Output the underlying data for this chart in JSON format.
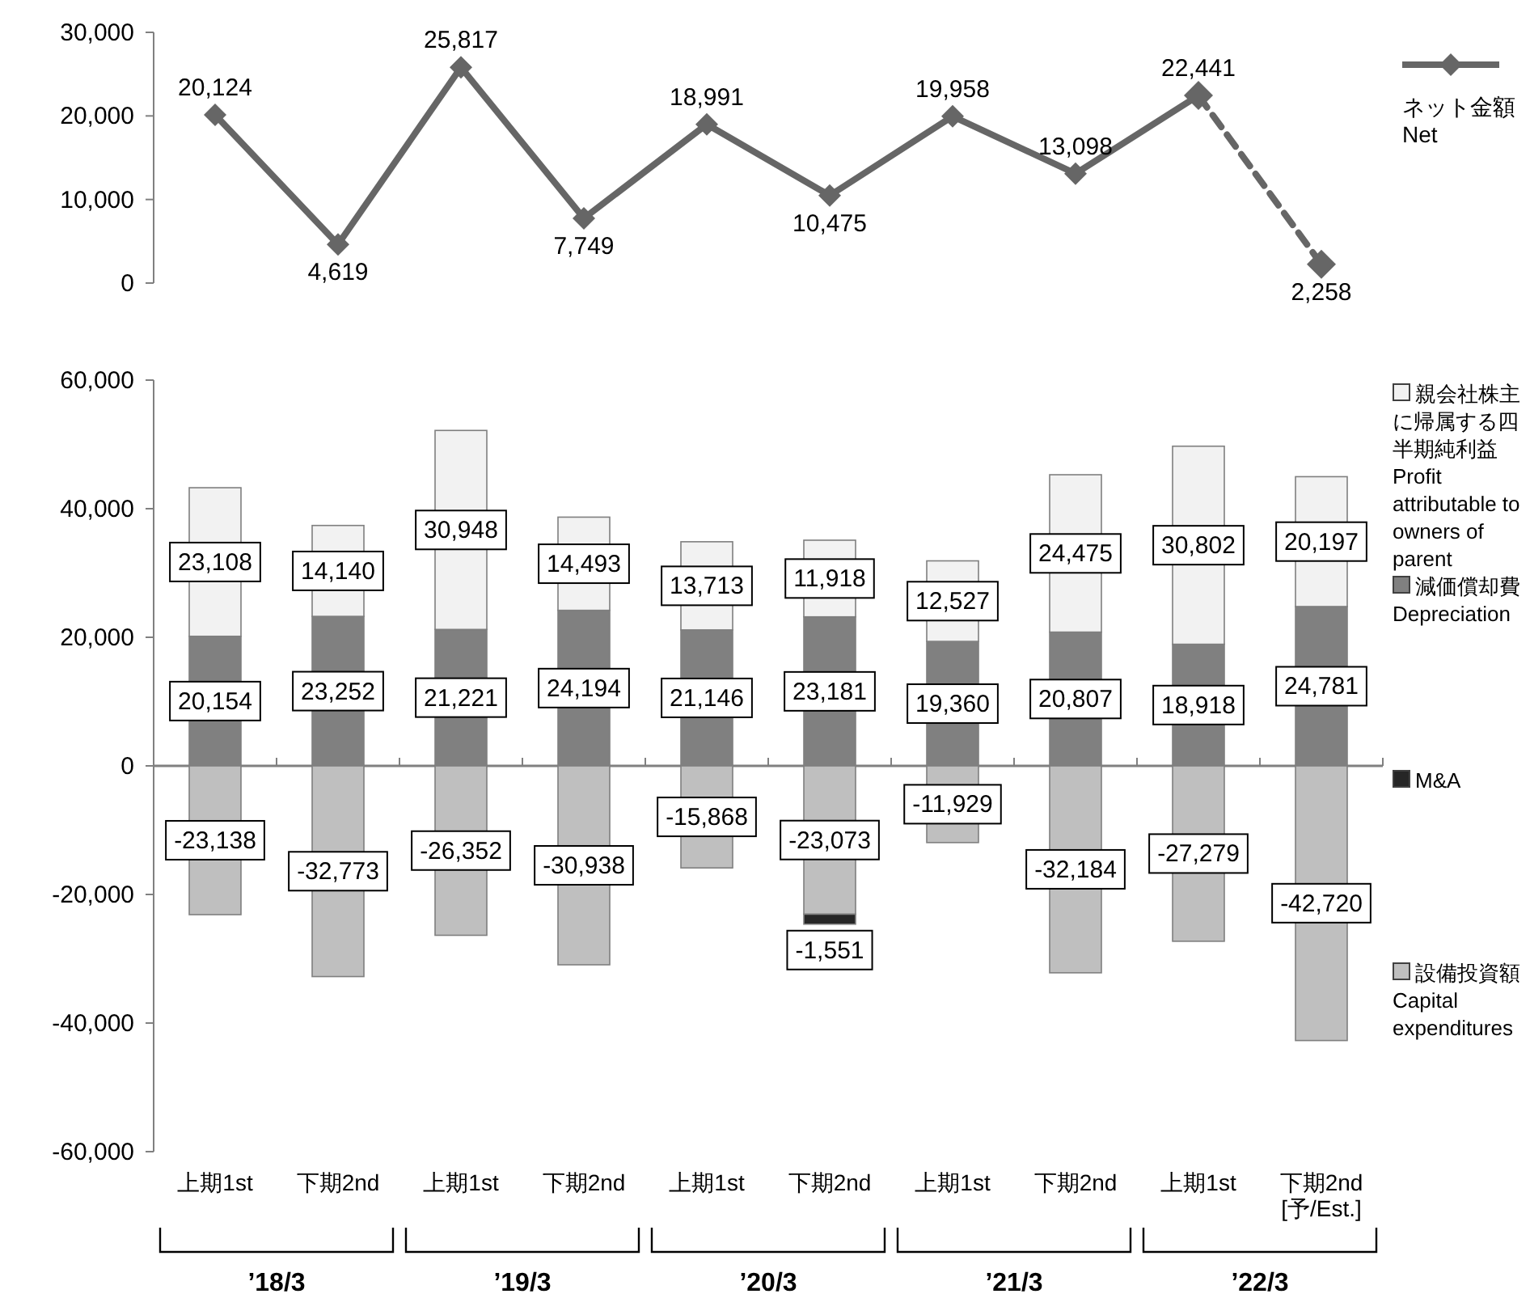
{
  "chart_data": [
    {
      "type": "line",
      "categories": [
        null,
        null,
        null,
        null,
        null,
        null,
        null,
        null,
        null,
        null
      ],
      "ylim": [
        0,
        30000
      ],
      "yticks": [
        0,
        {
          "value": 10000,
          "label": "10,000"
        },
        {
          "value": 20000,
          "label": "20,000"
        },
        {
          "value": 30000,
          "label": "30,000"
        }
      ],
      "tick_labels": "y",
      "marker": "diamond",
      "legend": "right",
      "grid": false,
      "series": [
        {
          "name": "ネット金額 Net",
          "color": "#666666",
          "values": [
            20124,
            4619,
            25817,
            7749,
            18991,
            10475,
            19958,
            13098,
            22441,
            null
          ],
          "value_labels": [
            "20,124",
            "4,619",
            "25,817",
            "7,749",
            "18,991",
            "10,475",
            "19,958",
            "13,098",
            "22,441",
            null
          ]
        },
        {
          "color": "#666666",
          "line_style": "dashed",
          "values": [
            null,
            null,
            null,
            null,
            null,
            null,
            null,
            null,
            22441,
            2258
          ],
          "value_labels": [
            null,
            null,
            null,
            null,
            null,
            null,
            null,
            null,
            null,
            "2,258"
          ]
        }
      ]
    },
    {
      "type": "bar",
      "stacked": true,
      "categories": [
        "上期1st",
        "下期2nd",
        "上期1st",
        "下期2nd",
        "上期1st",
        "下期2nd",
        "上期1st",
        "下期2nd",
        "上期1st",
        "下期2nd\n[予/Est.]"
      ],
      "ylim": [
        -60000,
        60000
      ],
      "yticks": [
        {
          "value": -60000,
          "label": "-60,000"
        },
        {
          "value": -40000,
          "label": "-40,000"
        },
        {
          "value": -20000,
          "label": "-20,000"
        },
        0,
        {
          "value": 20000,
          "label": "20,000"
        },
        {
          "value": 40000,
          "label": "40,000"
        },
        {
          "value": 60000,
          "label": "60,000"
        }
      ],
      "legend": "right",
      "grid": false,
      "ref_lines": [
        {
          "axis": "y",
          "value": 0,
          "color": "#808080"
        }
      ],
      "annotations": [
        "’18/3",
        "’19/3",
        "’20/3",
        "’21/3",
        "’22/3"
      ],
      "series": [
        {
          "name": "減価償却費 Depreciation",
          "color": "#808080",
          "values": [
            20154,
            23252,
            21221,
            24194,
            21146,
            23181,
            19360,
            20807,
            18918,
            24781
          ],
          "value_labels": [
            "20,154",
            "23,252",
            "21,221",
            "24,194",
            "21,146",
            "23,181",
            "19,360",
            "20,807",
            "18,918",
            "24,781"
          ]
        },
        {
          "name": "親会社株主に帰属する四半期純利益 Profit attributable to owners of parent",
          "color": "#f2f2f2",
          "values": [
            23108,
            14140,
            30948,
            14493,
            13713,
            11918,
            12527,
            24475,
            30802,
            20197
          ],
          "value_labels": [
            "23,108",
            "14,140",
            "30,948",
            "14,493",
            "13,713",
            "11,918",
            "12,527",
            "24,475",
            "30,802",
            "20,197"
          ]
        },
        {
          "name": "設備投資額 Capital expenditures",
          "color": "#bfbfbf",
          "values": [
            -23138,
            -32773,
            -26352,
            -30938,
            -15868,
            -23073,
            -11929,
            -32184,
            -27279,
            -42720
          ],
          "value_labels": [
            "-23,138",
            "-32,773",
            "-26,352",
            "-30,938",
            "-15,868",
            "-23,073",
            "-11,929",
            "-32,184",
            "-27,279",
            "-42,720"
          ]
        },
        {
          "name": "M&A",
          "color": "#262626",
          "values": [
            null,
            null,
            null,
            null,
            null,
            -1551,
            null,
            null,
            null,
            null
          ],
          "value_labels": [
            null,
            null,
            null,
            null,
            null,
            "-1,551",
            null,
            null,
            null,
            null
          ]
        }
      ]
    }
  ]
}
